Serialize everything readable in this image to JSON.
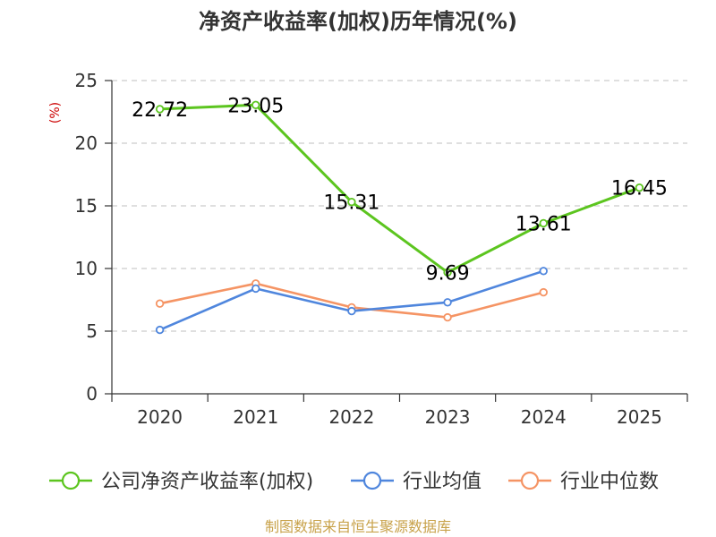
{
  "chart_data": {
    "type": "line",
    "title": "净资产收益率(加权)历年情况(%)",
    "ylabel": "(%)",
    "categories": [
      "2020",
      "2021",
      "2022",
      "2023",
      "2024",
      "2025"
    ],
    "ylim": [
      0,
      25
    ],
    "yticks": [
      "0",
      "5",
      "10",
      "15",
      "20",
      "25"
    ],
    "grid": true,
    "legend_position": "bottom",
    "series": [
      {
        "name": "公司净资产收益率(加权)",
        "color": "#5cc51f",
        "values": [
          22.72,
          23.05,
          15.31,
          9.69,
          13.61,
          16.45
        ],
        "labels": [
          "22.72",
          "23.05",
          "15.31",
          "9.69",
          "13.61",
          "16.45"
        ]
      },
      {
        "name": "行业均值",
        "color": "#4f86dd",
        "values": [
          5.1,
          8.4,
          6.6,
          7.3,
          9.8,
          null
        ]
      },
      {
        "name": "行业中位数",
        "color": "#f59464",
        "values": [
          7.2,
          8.8,
          6.9,
          6.1,
          8.1,
          null
        ]
      }
    ],
    "source": "制图数据来自恒生聚源数据库",
    "unit_color": "#cc0000",
    "source_color": "#c8a24a"
  }
}
